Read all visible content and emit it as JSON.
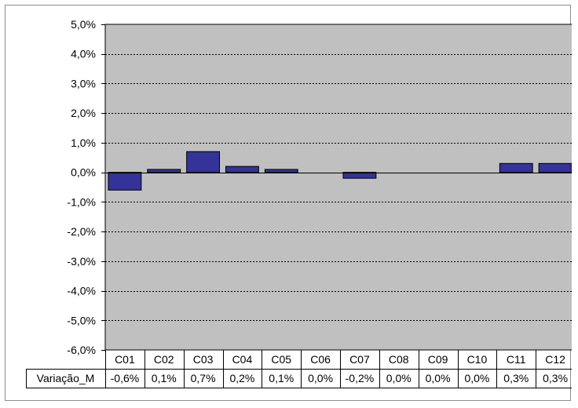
{
  "chart_data": {
    "type": "bar",
    "categories": [
      "C01",
      "C02",
      "C03",
      "C04",
      "C05",
      "C06",
      "C07",
      "C08",
      "C09",
      "C10",
      "C11",
      "C12"
    ],
    "series": [
      {
        "name": "Variação_M",
        "values": [
          -0.6,
          0.1,
          0.7,
          0.2,
          0.1,
          0.0,
          -0.2,
          0.0,
          0.0,
          0.0,
          0.3,
          0.3
        ],
        "labels": [
          "-0,6%",
          "0,1%",
          "0,7%",
          "0,2%",
          "0,1%",
          "0,0%",
          "-0,2%",
          "0,0%",
          "0,0%",
          "0,0%",
          "0,3%",
          "0,3%"
        ]
      }
    ],
    "ylim": [
      -6.0,
      5.0
    ],
    "yticks": [
      5.0,
      4.0,
      3.0,
      2.0,
      1.0,
      0.0,
      -1.0,
      -2.0,
      -3.0,
      -4.0,
      -5.0,
      -6.0
    ],
    "ytick_labels": [
      "5,0%",
      "4,0%",
      "3,0%",
      "2,0%",
      "1,0%",
      "0,0%",
      "-1,0%",
      "-2,0%",
      "-3,0%",
      "-4,0%",
      "-5,0%",
      "-6,0%"
    ],
    "grid": true,
    "data_table": true,
    "colors": {
      "plot_bg": "#c0c0c0",
      "bar": "#333399",
      "bar_edge": "#000000",
      "grid": "#000000"
    }
  }
}
